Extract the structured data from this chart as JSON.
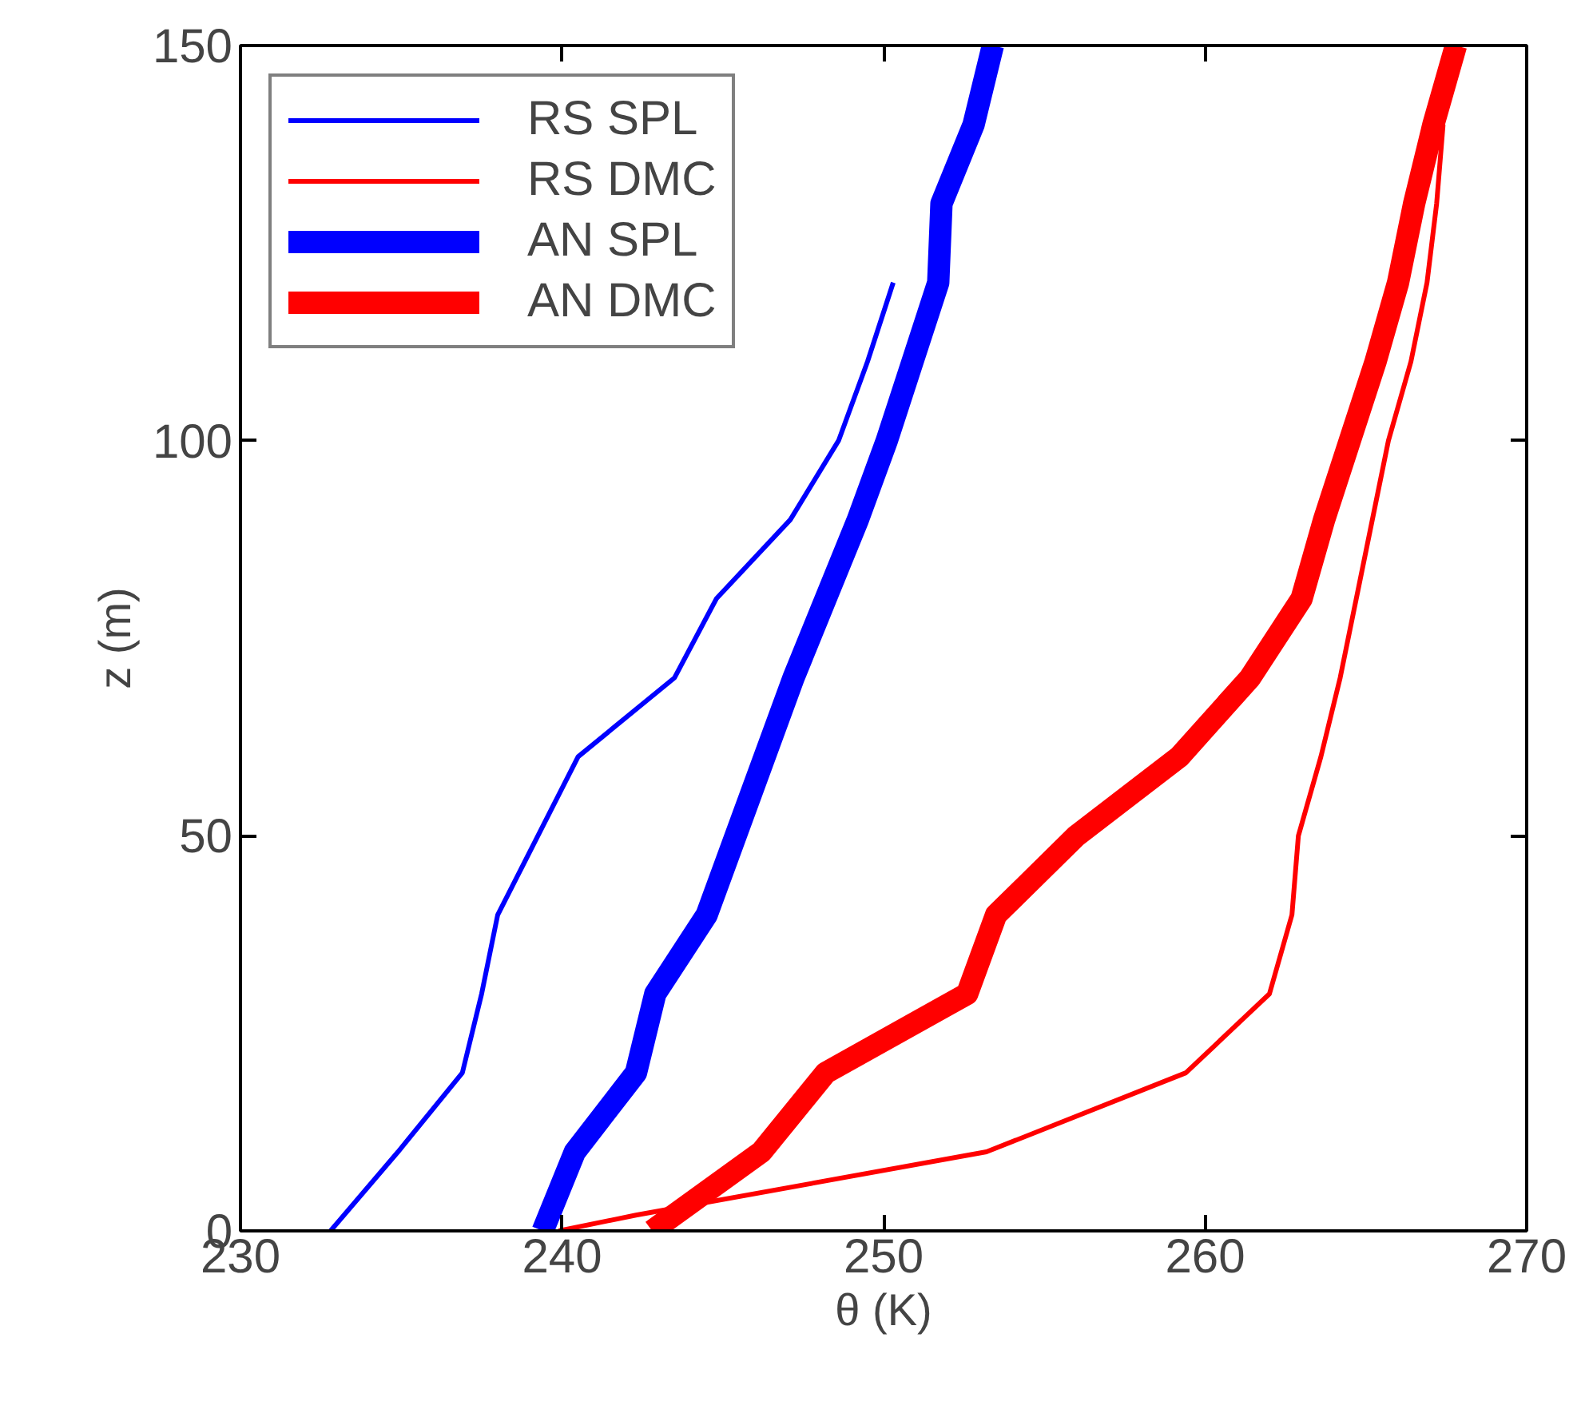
{
  "chart_data": {
    "type": "line",
    "xlabel": "θ (K)",
    "ylabel": "z (m)",
    "xlim": [
      230,
      270
    ],
    "ylim": [
      0,
      150
    ],
    "xticks": [
      230,
      240,
      250,
      260,
      270
    ],
    "yticks": [
      0,
      50,
      100,
      150
    ],
    "grid": false,
    "legend": "top left",
    "marker": "none",
    "line_style": "solid",
    "series": [
      {
        "name": "RS SPL",
        "color": "#0000ff",
        "x": [
          232.8,
          234.9,
          236.9,
          237.5,
          238.0,
          240.5,
          243.5,
          244.8,
          247.1,
          248.6,
          249.5,
          250.3
        ],
        "values": [
          0,
          10,
          20,
          30,
          40,
          60,
          70,
          80,
          90,
          100,
          110,
          120
        ]
      },
      {
        "name": "RS DMC",
        "color": "#ff0000",
        "x": [
          239.9,
          242.3,
          253.2,
          259.4,
          262.0,
          262.7,
          262.9,
          263.6,
          264.2,
          264.7,
          265.2,
          265.7,
          266.4,
          266.9,
          267.2,
          267.4
        ],
        "values": [
          0,
          2,
          10,
          20,
          30,
          40,
          50,
          60,
          70,
          80,
          90,
          100,
          110,
          120,
          130,
          140
        ]
      },
      {
        "name": "AN SPL",
        "color": "#0000ff",
        "x": [
          239.4,
          240.4,
          242.3,
          242.9,
          244.5,
          247.2,
          248.2,
          249.2,
          250.1,
          250.9,
          251.7,
          251.8,
          252.8,
          253.4
        ],
        "values": [
          0,
          10,
          20,
          30,
          40,
          70,
          80,
          90,
          100,
          110,
          120,
          130,
          140,
          150
        ]
      },
      {
        "name": "AN DMC",
        "color": "#ff0000",
        "x": [
          242.8,
          246.2,
          248.2,
          252.6,
          253.5,
          256.0,
          259.2,
          261.4,
          263.0,
          263.7,
          264.5,
          265.3,
          266.0,
          266.5,
          267.1,
          267.8
        ],
        "values": [
          0,
          10,
          20,
          30,
          40,
          50,
          60,
          70,
          80,
          90,
          100,
          110,
          120,
          130,
          140,
          150
        ]
      }
    ]
  }
}
